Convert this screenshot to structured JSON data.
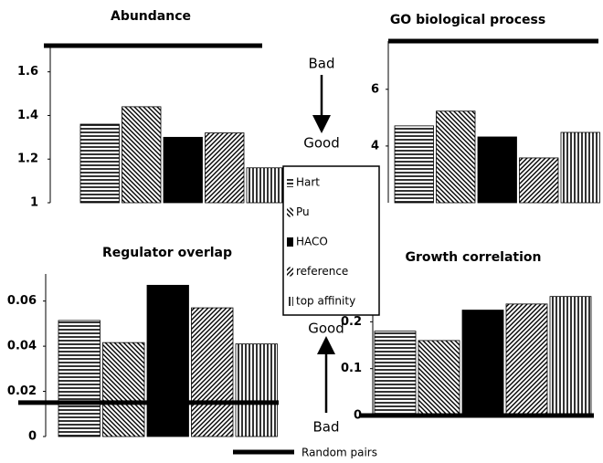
{
  "chart_data": [
    {
      "type": "bar",
      "title": "Abundance",
      "ylim": [
        1,
        1.72
      ],
      "yticks": [
        1,
        1.2,
        1.4,
        1.6
      ],
      "values": [
        1.36,
        1.44,
        1.3,
        1.32,
        1.16
      ],
      "random": 1.72
    },
    {
      "type": "bar",
      "title": "GO biological process",
      "ylim": [
        2,
        7.7
      ],
      "yticks": [
        4,
        6
      ],
      "values": [
        4.71,
        5.23,
        4.32,
        3.58,
        4.48
      ],
      "random": 7.7
    },
    {
      "type": "bar",
      "title": "Regulator overlap",
      "ylim": [
        0,
        0.072
      ],
      "yticks": [
        0,
        0.02,
        0.04,
        0.06
      ],
      "values": [
        0.0514,
        0.0416,
        0.067,
        0.057,
        0.041
      ],
      "random": 0.015
    },
    {
      "type": "bar",
      "title": "Growth correlation",
      "ylim": [
        0,
        0.267
      ],
      "yticks": [
        0,
        0.1,
        0.2
      ],
      "values": [
        0.18,
        0.16,
        0.225,
        0.238,
        0.254
      ],
      "random": 0
    }
  ],
  "legend": {
    "entries": [
      {
        "name": "Hart",
        "pattern": "horizontal"
      },
      {
        "name": "Pu",
        "pattern": "backslash"
      },
      {
        "name": "HACO",
        "pattern": "solid"
      },
      {
        "name": "reference",
        "pattern": "slash"
      },
      {
        "name": "top affinity",
        "pattern": "vertical"
      }
    ],
    "random_label": "Random pairs",
    "color": "#000000"
  },
  "annotations": {
    "top_bad": "Bad",
    "top_good": "Good",
    "bottom_good": "Good",
    "bottom_bad": "Bad"
  }
}
